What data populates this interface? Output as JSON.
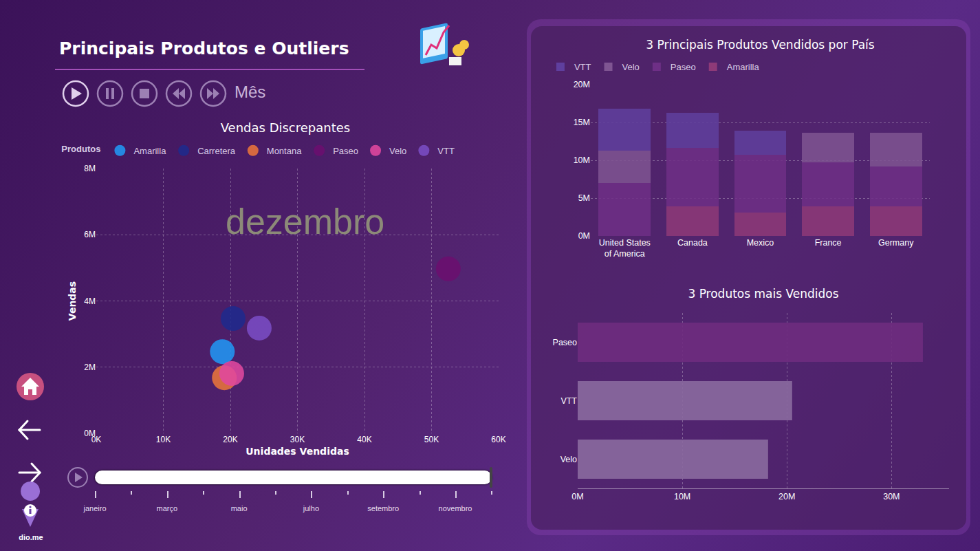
{
  "page": {
    "title": "Principais Produtos e Outliers",
    "play_axis_label": "Mês",
    "slider_labels": [
      "janeiro",
      "março",
      "maio",
      "julho",
      "setembro",
      "novembro"
    ],
    "logo_text": "dio.me"
  },
  "chart_data": [
    {
      "type": "scatter",
      "title": "Vendas Discrepantes",
      "legend_title": "Produtos",
      "x_label": "Unidades Vendidas",
      "y_label": "Vendas",
      "annotations": [
        "dezembro"
      ],
      "marker": "circle",
      "legend": "top-left",
      "grid": true,
      "xlim": [
        0,
        60000
      ],
      "xticks": [
        {
          "value": 0,
          "label": "0K"
        },
        {
          "value": 10000,
          "label": "10K"
        },
        {
          "value": 20000,
          "label": "20K"
        },
        {
          "value": 30000,
          "label": "30K"
        },
        {
          "value": 40000,
          "label": "40K"
        },
        {
          "value": 50000,
          "label": "50K"
        },
        {
          "value": 60000,
          "label": "60K"
        }
      ],
      "ylim": [
        0,
        8000000
      ],
      "yticks": [
        {
          "value": 0,
          "label": "0M"
        },
        {
          "value": 2000000,
          "label": "2M"
        },
        {
          "value": 4000000,
          "label": "4M"
        },
        {
          "value": 6000000,
          "label": "6M"
        },
        {
          "value": 8000000,
          "label": "8M"
        }
      ],
      "series": [
        {
          "name": "Amarilla",
          "color": "#2196f3",
          "x": [
            18800
          ],
          "values": [
            2470000
          ]
        },
        {
          "name": "Carretera",
          "color": "#1f2a8c",
          "x": [
            20400
          ],
          "values": [
            3470000
          ]
        },
        {
          "name": "Montana",
          "color": "#e8743b",
          "x": [
            19100
          ],
          "values": [
            1680000
          ]
        },
        {
          "name": "Paseo",
          "color": "#6b0f6e",
          "x": [
            52500
          ],
          "values": [
            4970000
          ]
        },
        {
          "name": "Velo",
          "color": "#e0489e",
          "x": [
            20200
          ],
          "values": [
            1810000
          ]
        },
        {
          "name": "VTT",
          "color": "#7a4cc4",
          "x": [
            24300
          ],
          "values": [
            3180000
          ]
        }
      ]
    },
    {
      "type": "bar",
      "title": "3 Principais Produtos Vendidos por País",
      "stacked": true,
      "legend": "top-left",
      "grid": true,
      "categories": [
        "United States of America",
        "Canada",
        "Mexico",
        "France",
        "Germany"
      ],
      "ylim": [
        0,
        20000000
      ],
      "yticks": [
        {
          "value": 0,
          "label": "0M"
        },
        {
          "value": 5000000,
          "label": "5M"
        },
        {
          "value": 10000000,
          "label": "10M"
        },
        {
          "value": 15000000,
          "label": "15M"
        },
        {
          "value": 20000000,
          "label": "20M"
        }
      ],
      "series": [
        {
          "name": "Amarilla",
          "color": "#8e3a78",
          "values": [
            null,
            3900000,
            3100000,
            3900000,
            3900000
          ]
        },
        {
          "name": "Paseo",
          "color": "#6e2f86",
          "values": [
            7000000,
            7700000,
            7600000,
            5800000,
            5300000
          ]
        },
        {
          "name": "Velo",
          "color": "#7f5592",
          "values": [
            4300000,
            null,
            null,
            3900000,
            4400000
          ]
        },
        {
          "name": "VTT",
          "color": "#5f3f9e",
          "values": [
            5500000,
            4700000,
            3200000,
            null,
            null
          ]
        }
      ]
    },
    {
      "type": "bar",
      "title": "3 Produtos mais Vendidos",
      "orientation": "horizontal",
      "grid": true,
      "categories": [
        "Paseo",
        "VTT",
        "Velo"
      ],
      "values": [
        33000000,
        20500000,
        18200000
      ],
      "colors": [
        "#6e2c7e",
        "#8a6a9e",
        "#8a6a9e"
      ],
      "xlim": [
        0,
        35500000
      ],
      "xticks": [
        {
          "value": 0,
          "label": "0M"
        },
        {
          "value": 10000000,
          "label": "10M"
        },
        {
          "value": 20000000,
          "label": "20M"
        },
        {
          "value": 30000000,
          "label": "30M"
        }
      ]
    }
  ]
}
